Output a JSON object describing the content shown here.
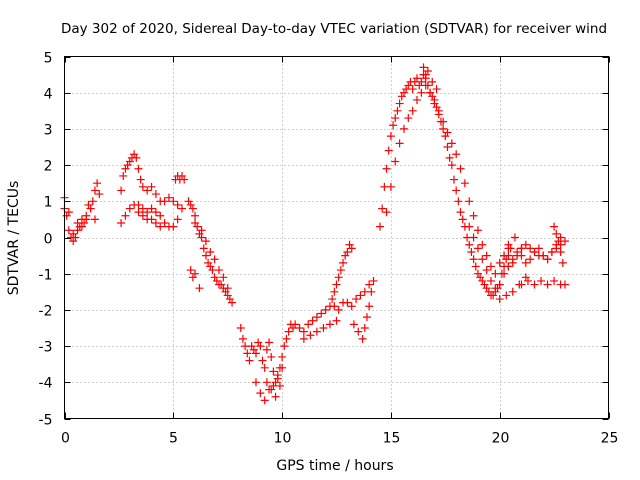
{
  "chart_data": {
    "type": "scatter",
    "title": "Day 302 of 2020, Sidereal Day-to-day VTEC variation (SDTVAR) for receiver wind",
    "xlabel": "GPS time / hours",
    "ylabel": "SDTVAR / TECUs",
    "xlim": [
      0,
      25
    ],
    "ylim": [
      -5,
      5
    ],
    "xticks": [
      0,
      5,
      10,
      15,
      20,
      25
    ],
    "yticks": [
      -5,
      -4,
      -3,
      -2,
      -1,
      0,
      1,
      2,
      3,
      4,
      5
    ],
    "grid": true,
    "marker": "+",
    "color": "#ff0000",
    "series": [
      {
        "name": "SDTVAR",
        "x": [
          0.0,
          0.1,
          0.2,
          0.3,
          0.4,
          0.5,
          0.6,
          0.7,
          0.8,
          0.9,
          1.0,
          1.1,
          1.2,
          1.3,
          1.4,
          1.5,
          1.6,
          0.0,
          0.2,
          0.4,
          0.6,
          0.8,
          1.0,
          1.2,
          1.4,
          2.6,
          2.7,
          2.8,
          2.9,
          3.0,
          3.1,
          3.2,
          3.3,
          3.4,
          3.5,
          3.6,
          3.8,
          4.0,
          4.2,
          4.4,
          4.6,
          4.8,
          5.0,
          5.2,
          2.6,
          2.8,
          3.0,
          3.2,
          3.4,
          3.6,
          3.8,
          4.0,
          4.2,
          4.4,
          4.6,
          4.8,
          5.0,
          5.2,
          5.4,
          3.4,
          3.6,
          3.8,
          4.0,
          4.2,
          4.4,
          5.1,
          5.2,
          5.3,
          5.4,
          5.5,
          5.7,
          5.8,
          5.9,
          6.0,
          5.8,
          5.9,
          6.0,
          6.2,
          6.0,
          6.1,
          6.2,
          6.3,
          6.4,
          6.5,
          6.6,
          6.7,
          6.8,
          6.9,
          7.0,
          7.1,
          7.2,
          7.3,
          7.4,
          7.5,
          7.6,
          7.7,
          6.3,
          6.5,
          6.7,
          6.9,
          7.1,
          7.3,
          7.5,
          8.1,
          8.2,
          8.3,
          8.4,
          8.5,
          8.6,
          8.7,
          8.8,
          8.9,
          9.0,
          9.1,
          9.2,
          9.3,
          9.4,
          9.5,
          9.6,
          9.7,
          9.8,
          9.9,
          10.0,
          10.1,
          10.2,
          10.3,
          10.4,
          10.5,
          8.8,
          9.0,
          9.2,
          9.4,
          9.6,
          9.8,
          10.0,
          9.3,
          9.5,
          9.7,
          9.9,
          10.6,
          10.8,
          11.0,
          11.2,
          11.4,
          11.6,
          11.8,
          12.0,
          12.2,
          12.4,
          12.6,
          12.8,
          13.0,
          13.2,
          13.4,
          13.6,
          13.8,
          14.0,
          11.0,
          11.3,
          11.6,
          11.9,
          12.2,
          12.5,
          12.3,
          12.4,
          12.5,
          12.6,
          12.7,
          12.8,
          12.9,
          13.0,
          13.1,
          13.2,
          13.3,
          13.5,
          13.7,
          13.8,
          13.9,
          14.0,
          14.1,
          14.2,
          14.5,
          14.6,
          14.7,
          14.8,
          14.9,
          15.0,
          15.1,
          15.2,
          15.3,
          15.4,
          15.5,
          15.6,
          15.7,
          15.8,
          15.9,
          16.0,
          16.1,
          16.2,
          16.3,
          16.4,
          16.5,
          16.6,
          16.7,
          16.8,
          16.9,
          17.0,
          17.1,
          17.2,
          17.3,
          17.4,
          17.5,
          17.6,
          17.7,
          17.8,
          17.9,
          18.0,
          18.1,
          18.2,
          18.3,
          18.4,
          18.5,
          18.6,
          18.7,
          18.8,
          18.9,
          19.0,
          19.1,
          19.2,
          19.3,
          19.4,
          19.5,
          19.6,
          19.7,
          19.8,
          19.9,
          20.0,
          20.1,
          20.2,
          20.3,
          20.4,
          20.5,
          14.8,
          15.0,
          15.2,
          15.4,
          15.6,
          15.8,
          16.0,
          16.2,
          16.4,
          16.6,
          16.8,
          17.0,
          17.2,
          17.4,
          17.6,
          17.8,
          18.0,
          18.2,
          18.4,
          18.6,
          18.8,
          19.0,
          19.2,
          19.4,
          19.6,
          19.8,
          20.0,
          20.2,
          20.4,
          16.5,
          16.6,
          16.7,
          16.9,
          17.1,
          18.6,
          18.8,
          19.0,
          19.2,
          19.4,
          19.6,
          19.8,
          20.0,
          20.2,
          20.4,
          20.6,
          20.8,
          21.0,
          21.2,
          21.4,
          21.6,
          21.8,
          22.0,
          22.2,
          22.4,
          22.6,
          22.8,
          23.0,
          20.2,
          20.4,
          20.6,
          20.8,
          21.0,
          21.2,
          21.4,
          21.6,
          21.8,
          22.0,
          22.2,
          22.4,
          22.6,
          22.8,
          20.0,
          20.3,
          20.6,
          20.9,
          21.2,
          21.0,
          21.3,
          21.6,
          21.9,
          22.2,
          22.5,
          22.8,
          23.0,
          22.5,
          22.6,
          22.7,
          22.8,
          22.9,
          20.4,
          20.7,
          21.0
        ],
        "y": [
          0.8,
          0.6,
          0.2,
          0.0,
          -0.1,
          0.0,
          0.2,
          0.3,
          0.5,
          0.4,
          0.6,
          0.9,
          0.8,
          1.0,
          1.3,
          1.5,
          1.2,
          1.1,
          0.7,
          0.1,
          0.4,
          0.3,
          0.5,
          0.8,
          0.5,
          1.3,
          1.7,
          1.9,
          2.0,
          2.1,
          2.2,
          2.3,
          2.2,
          1.9,
          1.6,
          1.4,
          1.3,
          1.4,
          1.2,
          1.0,
          1.0,
          1.1,
          1.0,
          0.9,
          0.4,
          0.6,
          0.8,
          0.9,
          0.7,
          0.6,
          0.5,
          0.5,
          0.4,
          0.3,
          0.4,
          0.3,
          0.3,
          0.5,
          0.8,
          0.9,
          0.8,
          0.7,
          0.8,
          0.7,
          0.6,
          1.6,
          1.7,
          1.6,
          1.7,
          1.6,
          1.0,
          0.9,
          0.8,
          0.6,
          -0.9,
          -1.1,
          -1.0,
          -1.4,
          0.4,
          0.3,
          0.1,
          0.0,
          -0.3,
          -0.5,
          -0.7,
          -0.8,
          -0.9,
          -1.1,
          -1.2,
          -1.3,
          -1.3,
          -1.4,
          -1.5,
          -1.6,
          -1.7,
          -1.8,
          0.2,
          -0.1,
          -0.4,
          -0.6,
          -0.9,
          -1.1,
          -1.4,
          -2.5,
          -2.8,
          -3.0,
          -3.2,
          -3.4,
          -3.0,
          -3.1,
          -3.2,
          -2.9,
          -3.0,
          -3.4,
          -3.6,
          -3.1,
          -2.9,
          -3.3,
          -3.7,
          -4.0,
          -3.8,
          -3.6,
          -3.3,
          -3.0,
          -2.8,
          -2.6,
          -2.4,
          -2.5,
          -4.0,
          -4.3,
          -4.5,
          -4.2,
          -4.1,
          -3.9,
          -3.6,
          -4.0,
          -4.2,
          -4.4,
          -4.1,
          -2.4,
          -2.5,
          -2.6,
          -2.4,
          -2.3,
          -2.2,
          -2.1,
          -2.0,
          -1.9,
          -1.9,
          -2.0,
          -1.8,
          -1.8,
          -1.9,
          -1.7,
          -1.6,
          -1.5,
          -1.3,
          -2.8,
          -2.7,
          -2.6,
          -2.5,
          -2.4,
          -2.3,
          -1.7,
          -1.5,
          -1.3,
          -1.1,
          -0.9,
          -0.7,
          -0.5,
          -0.4,
          -0.2,
          -0.3,
          -2.4,
          -2.6,
          -2.8,
          -2.5,
          -2.2,
          -1.9,
          -1.5,
          -1.2,
          0.3,
          0.8,
          1.4,
          1.9,
          2.4,
          2.8,
          3.1,
          3.3,
          3.5,
          3.7,
          3.9,
          4.0,
          4.1,
          4.2,
          4.3,
          4.1,
          4.3,
          4.4,
          4.2,
          4.3,
          4.5,
          4.4,
          4.2,
          4.0,
          3.9,
          3.7,
          3.6,
          3.4,
          3.2,
          3.0,
          2.8,
          2.5,
          2.2,
          2.0,
          1.6,
          1.3,
          1.0,
          0.7,
          0.5,
          0.3,
          0.0,
          -0.2,
          -0.4,
          -0.6,
          -0.8,
          -1.0,
          -1.1,
          -1.2,
          -1.3,
          -1.4,
          -1.5,
          -1.6,
          -1.6,
          -1.5,
          -1.4,
          -1.3,
          -1.0,
          -0.8,
          -0.6,
          -0.5,
          -0.3,
          0.7,
          1.4,
          2.1,
          2.6,
          3.0,
          3.3,
          3.5,
          3.8,
          4.0,
          4.2,
          4.0,
          3.8,
          3.5,
          3.2,
          2.9,
          2.6,
          2.3,
          1.9,
          1.5,
          1.0,
          0.6,
          0.2,
          -0.2,
          -0.5,
          -0.8,
          -1.0,
          -0.7,
          -0.5,
          -0.3,
          4.7,
          4.5,
          4.6,
          4.3,
          4.1,
          0.3,
          0.0,
          -0.3,
          -0.6,
          -0.9,
          -1.2,
          -1.4,
          -1.3,
          -1.0,
          -0.8,
          -0.7,
          -0.5,
          -0.3,
          -0.2,
          -0.3,
          -0.4,
          -0.5,
          -0.5,
          -0.6,
          -0.4,
          -0.3,
          -0.2,
          -0.1,
          -0.5,
          -0.8,
          -0.6,
          -0.4,
          -0.5,
          -0.7,
          -0.6,
          -0.4,
          -0.3,
          -0.5,
          -0.6,
          -0.4,
          -0.2,
          0.0,
          -1.7,
          -1.6,
          -1.5,
          -1.3,
          -1.1,
          -1.3,
          -1.2,
          -1.3,
          -1.2,
          -1.3,
          -1.2,
          -1.3,
          -1.3,
          0.3,
          0.1,
          -0.1,
          -0.4,
          -0.7,
          -0.2,
          0.0,
          -0.3
        ]
      }
    ]
  }
}
